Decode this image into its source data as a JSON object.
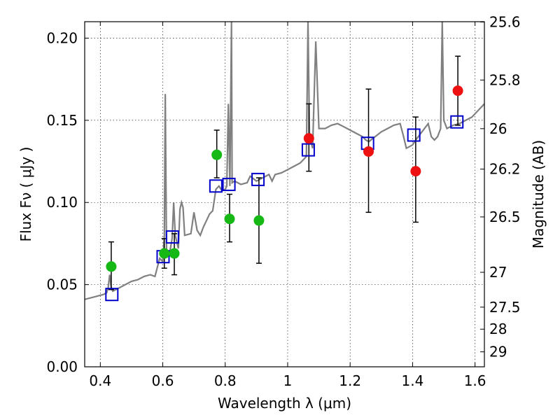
{
  "chart_data": {
    "type": "scatter",
    "xlabel": "Wavelength  λ (μm)",
    "ylabel": "Flux  Fν  ( μJy )",
    "y2label": "Magnitude (AB)",
    "xlim": [
      0.35,
      1.63
    ],
    "ylim": [
      0.0,
      0.21
    ],
    "xticks": [
      0.4,
      0.6,
      0.8,
      1.0,
      1.2,
      1.4,
      1.6
    ],
    "xtick_labels": [
      "0.4",
      "0.6",
      "0.8",
      "1",
      "1.2",
      "1.4",
      "1.6"
    ],
    "yticks": [
      0.0,
      0.05,
      0.1,
      0.15,
      0.2
    ],
    "ytick_labels": [
      "0.00",
      "0.05",
      "0.10",
      "0.15",
      "0.20"
    ],
    "y2ticks": [
      {
        "label": "25.6",
        "flux": 0.2098
      },
      {
        "label": "25.8",
        "flux": 0.1745
      },
      {
        "label": "26",
        "flux": 0.1449
      },
      {
        "label": "26.2",
        "flux": 0.1203
      },
      {
        "label": "26.5",
        "flux": 0.0912
      },
      {
        "label": "27",
        "flux": 0.0575
      },
      {
        "label": "27.5",
        "flux": 0.0363
      },
      {
        "label": "28",
        "flux": 0.0229
      },
      {
        "label": "29",
        "flux": 0.0091
      }
    ],
    "grid": true,
    "colors": {
      "green": "#16b816",
      "red": "#ee1111",
      "model_square": "#0000cc",
      "spectrum": "#808080",
      "errorbar": "#000000"
    },
    "series": [
      {
        "marker": "circle",
        "color": "green",
        "points": [
          {
            "x": 0.435,
            "y": 0.061,
            "err": [
              0.047,
              0.076
            ]
          },
          {
            "x": 0.605,
            "y": 0.069,
            "err": [
              0.06,
              0.078
            ]
          },
          {
            "x": 0.637,
            "y": 0.069,
            "err": [
              0.056,
              0.081
            ]
          },
          {
            "x": 0.773,
            "y": 0.129,
            "err": [
              0.115,
              0.144
            ]
          },
          {
            "x": 0.814,
            "y": 0.09,
            "err": [
              0.076,
              0.105
            ]
          },
          {
            "x": 0.908,
            "y": 0.089,
            "err": [
              0.063,
              0.115
            ]
          }
        ]
      },
      {
        "marker": "circle",
        "color": "red",
        "points": [
          {
            "x": 1.068,
            "y": 0.139,
            "err": [
              0.119,
              0.16
            ]
          },
          {
            "x": 1.259,
            "y": 0.131,
            "err": [
              0.094,
              0.169
            ]
          },
          {
            "x": 1.41,
            "y": 0.119,
            "err": [
              0.088,
              0.152
            ]
          },
          {
            "x": 1.545,
            "y": 0.168,
            "err": [
              0.147,
              0.189
            ]
          }
        ]
      },
      {
        "marker": "open-square",
        "color": "model_square",
        "points": [
          {
            "x": 0.437,
            "y": 0.044
          },
          {
            "x": 0.601,
            "y": 0.067
          },
          {
            "x": 0.631,
            "y": 0.079
          },
          {
            "x": 0.77,
            "y": 0.11
          },
          {
            "x": 0.812,
            "y": 0.111
          },
          {
            "x": 0.905,
            "y": 0.114
          },
          {
            "x": 1.066,
            "y": 0.132
          },
          {
            "x": 1.256,
            "y": 0.136
          },
          {
            "x": 1.404,
            "y": 0.141
          },
          {
            "x": 1.542,
            "y": 0.149
          }
        ]
      }
    ],
    "spectrum": [
      [
        0.35,
        0.041
      ],
      [
        0.37,
        0.042
      ],
      [
        0.39,
        0.043
      ],
      [
        0.41,
        0.044
      ],
      [
        0.42,
        0.045
      ],
      [
        0.425,
        0.048
      ],
      [
        0.43,
        0.056
      ],
      [
        0.435,
        0.048
      ],
      [
        0.44,
        0.046
      ],
      [
        0.46,
        0.048
      ],
      [
        0.48,
        0.05
      ],
      [
        0.5,
        0.052
      ],
      [
        0.52,
        0.053
      ],
      [
        0.54,
        0.055
      ],
      [
        0.56,
        0.056
      ],
      [
        0.575,
        0.055
      ],
      [
        0.59,
        0.066
      ],
      [
        0.6,
        0.064
      ],
      [
        0.605,
        0.08
      ],
      [
        0.608,
        0.166
      ],
      [
        0.612,
        0.07
      ],
      [
        0.62,
        0.067
      ],
      [
        0.63,
        0.078
      ],
      [
        0.635,
        0.1
      ],
      [
        0.64,
        0.08
      ],
      [
        0.65,
        0.072
      ],
      [
        0.655,
        0.096
      ],
      [
        0.66,
        0.1
      ],
      [
        0.665,
        0.097
      ],
      [
        0.67,
        0.08
      ],
      [
        0.69,
        0.081
      ],
      [
        0.7,
        0.094
      ],
      [
        0.71,
        0.083
      ],
      [
        0.72,
        0.08
      ],
      [
        0.73,
        0.085
      ],
      [
        0.75,
        0.093
      ],
      [
        0.76,
        0.095
      ],
      [
        0.77,
        0.108
      ],
      [
        0.78,
        0.11
      ],
      [
        0.79,
        0.107
      ],
      [
        0.8,
        0.108
      ],
      [
        0.805,
        0.11
      ],
      [
        0.81,
        0.16
      ],
      [
        0.815,
        0.11
      ],
      [
        0.82,
        0.21
      ],
      [
        0.822,
        0.112
      ],
      [
        0.83,
        0.113
      ],
      [
        0.85,
        0.111
      ],
      [
        0.87,
        0.112
      ],
      [
        0.88,
        0.116
      ],
      [
        0.9,
        0.113
      ],
      [
        0.92,
        0.115
      ],
      [
        0.94,
        0.117
      ],
      [
        0.95,
        0.113
      ],
      [
        0.96,
        0.117
      ],
      [
        0.98,
        0.118
      ],
      [
        1.0,
        0.12
      ],
      [
        1.02,
        0.122
      ],
      [
        1.04,
        0.124
      ],
      [
        1.05,
        0.126
      ],
      [
        1.06,
        0.128
      ],
      [
        1.065,
        0.21
      ],
      [
        1.07,
        0.14
      ],
      [
        1.08,
        0.133
      ],
      [
        1.09,
        0.198
      ],
      [
        1.1,
        0.145
      ],
      [
        1.12,
        0.145
      ],
      [
        1.14,
        0.147
      ],
      [
        1.16,
        0.148
      ],
      [
        1.18,
        0.146
      ],
      [
        1.2,
        0.144
      ],
      [
        1.22,
        0.142
      ],
      [
        1.24,
        0.14
      ],
      [
        1.25,
        0.138
      ],
      [
        1.26,
        0.137
      ],
      [
        1.28,
        0.14
      ],
      [
        1.3,
        0.143
      ],
      [
        1.32,
        0.145
      ],
      [
        1.34,
        0.147
      ],
      [
        1.36,
        0.148
      ],
      [
        1.37,
        0.141
      ],
      [
        1.38,
        0.133
      ],
      [
        1.4,
        0.135
      ],
      [
        1.41,
        0.138
      ],
      [
        1.43,
        0.143
      ],
      [
        1.45,
        0.148
      ],
      [
        1.46,
        0.14
      ],
      [
        1.47,
        0.138
      ],
      [
        1.48,
        0.14
      ],
      [
        1.49,
        0.145
      ],
      [
        1.495,
        0.21
      ],
      [
        1.5,
        0.15
      ],
      [
        1.51,
        0.145
      ],
      [
        1.53,
        0.147
      ],
      [
        1.55,
        0.148
      ],
      [
        1.57,
        0.15
      ],
      [
        1.59,
        0.152
      ],
      [
        1.61,
        0.156
      ],
      [
        1.63,
        0.16
      ]
    ]
  }
}
